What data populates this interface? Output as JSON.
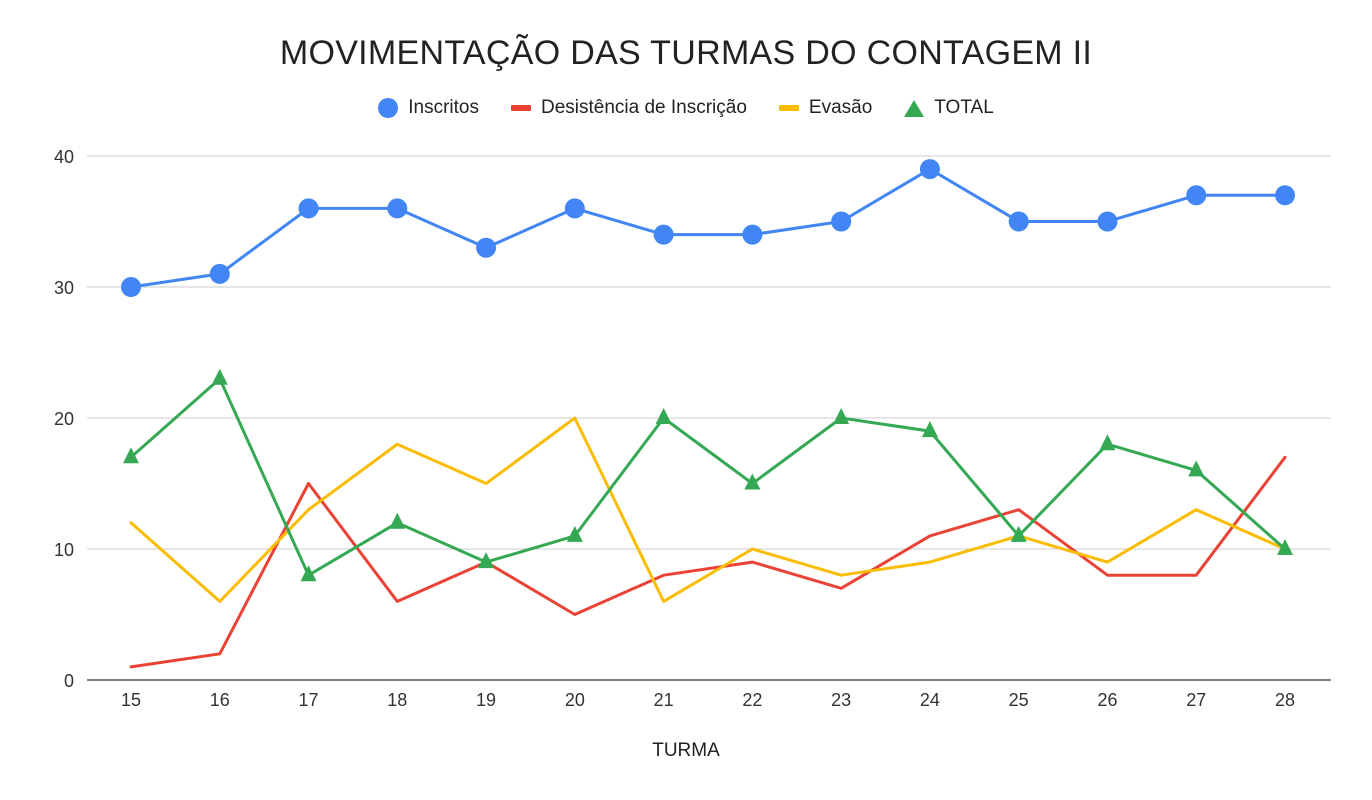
{
  "chart_data": {
    "type": "line",
    "title": "MOVIMENTAÇÃO DAS TURMAS DO CONTAGEM II",
    "xlabel": "TURMA",
    "ylabel": "",
    "categories": [
      "15",
      "16",
      "17",
      "18",
      "19",
      "20",
      "21",
      "22",
      "23",
      "24",
      "25",
      "26",
      "27",
      "28"
    ],
    "ylim": [
      0,
      40
    ],
    "yticks": [
      0,
      10,
      20,
      30,
      40
    ],
    "grid": true,
    "legend_position": "top",
    "series": [
      {
        "name": "Inscritos",
        "color": "#4285f4",
        "marker": "circle",
        "values": [
          30,
          31,
          36,
          36,
          33,
          36,
          34,
          34,
          35,
          39,
          35,
          35,
          37,
          37
        ]
      },
      {
        "name": "Desistência de Inscrição",
        "color": "#ea4335",
        "marker": "none",
        "values": [
          1,
          2,
          15,
          6,
          9,
          5,
          8,
          9,
          7,
          11,
          13,
          8,
          8,
          17
        ]
      },
      {
        "name": "Evasão",
        "color": "#fbbc04",
        "marker": "none",
        "values": [
          12,
          6,
          13,
          18,
          15,
          20,
          6,
          10,
          8,
          9,
          11,
          9,
          13,
          10
        ]
      },
      {
        "name": "TOTAL",
        "color": "#34a853",
        "marker": "triangle",
        "values": [
          17,
          23,
          8,
          12,
          9,
          11,
          20,
          15,
          20,
          19,
          11,
          18,
          16,
          10
        ]
      }
    ]
  }
}
